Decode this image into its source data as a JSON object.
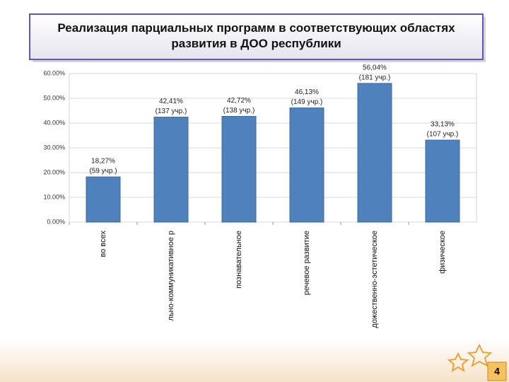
{
  "slide_number": "4",
  "chart_data": {
    "type": "bar",
    "title": "Реализация парциальных программ в соответствующих областях развития в ДОО республики",
    "categories": [
      "во всех",
      "льно-коммуникативное р",
      "познавательное",
      "речевое развитие",
      "дожественно-эстетическое",
      "физическое"
    ],
    "values": [
      18.27,
      42.41,
      42.72,
      46.13,
      56.04,
      33.13
    ],
    "value_labels": [
      "18,27%",
      "42,41%",
      "42,72%",
      "46,13%",
      "56,04%",
      "33,13%"
    ],
    "count_labels": [
      "(59 учр.)",
      "(137 учр.)",
      "(138 учр.)",
      "(149 учр.)",
      "(181 учр.)",
      "(107 учр.)"
    ],
    "color": "#4f81bd",
    "ylim": [
      0,
      60
    ],
    "yticks": [
      {
        "value": 0,
        "label": "0.00%"
      },
      {
        "value": 10,
        "label": "10.00%"
      },
      {
        "value": 20,
        "label": "20.00%"
      },
      {
        "value": 30,
        "label": "30.00%"
      },
      {
        "value": 40,
        "label": "40.00%"
      },
      {
        "value": 50,
        "label": "50.00%"
      },
      {
        "value": 60,
        "label": "60.00%"
      }
    ],
    "grid": true
  }
}
